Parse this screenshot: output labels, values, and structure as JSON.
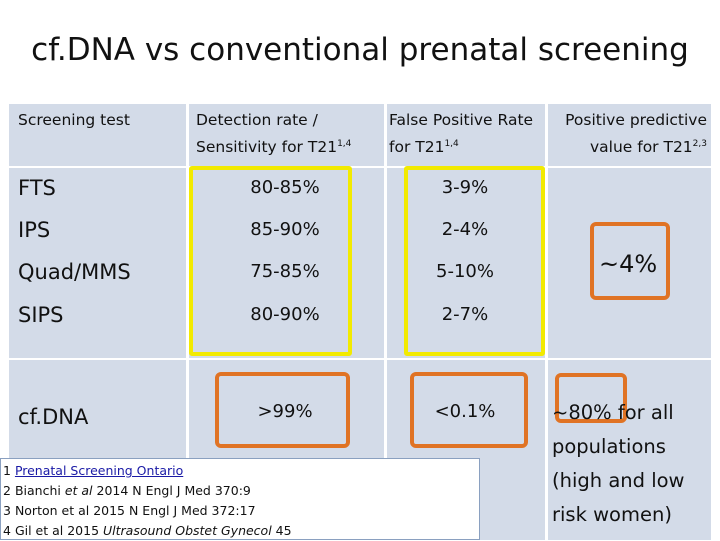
{
  "title": "cf.DNA vs conventional prenatal screening",
  "headers": {
    "screening_test": "Screening test",
    "detection_line1": "Detection rate /",
    "detection_line2": "Sensitivity for T21",
    "detection_sup": "1,4",
    "fpr_line1": "False Positive Rate",
    "fpr_line2": "for T21",
    "fpr_sup": "1,4",
    "ppv_line1": "Positive predictive",
    "ppv_line2": "value for T21",
    "ppv_sup": "2,3"
  },
  "rows": [
    {
      "test": "FTS",
      "detection": "80-85%",
      "fpr": "3-9%"
    },
    {
      "test": "IPS",
      "detection": "85-90%",
      "fpr": "2-4%"
    },
    {
      "test": "Quad/MMS",
      "detection": "75-85%",
      "fpr": "5-10%"
    },
    {
      "test": "SIPS",
      "detection": "80-90%",
      "fpr": "2-7%"
    },
    {
      "test": "cf.DNA",
      "detection": ">99%",
      "fpr": "<0.1%"
    }
  ],
  "ppv_conventional": "~4%",
  "ppv_cfdna": "~80% for all populations (high and low risk women)",
  "references": [
    {
      "num": "1",
      "text": "Prenatal Screening Ontario"
    },
    {
      "num": "2",
      "pre": "Bianchi ",
      "italic": "et al",
      "post": " 2014 N Engl J Med 370:9"
    },
    {
      "num": "3",
      "text": "Norton et al 2015 N Engl J Med 372:17"
    },
    {
      "num": "4",
      "pre": "Gil et al 2015 ",
      "italic": "Ultrasound Obstet Gynecol",
      "post": " 45"
    }
  ],
  "colors": {
    "yellow_highlight": "#f2ea00",
    "orange_highlight": "#e07324",
    "table_bg": "#d3dbe8"
  }
}
